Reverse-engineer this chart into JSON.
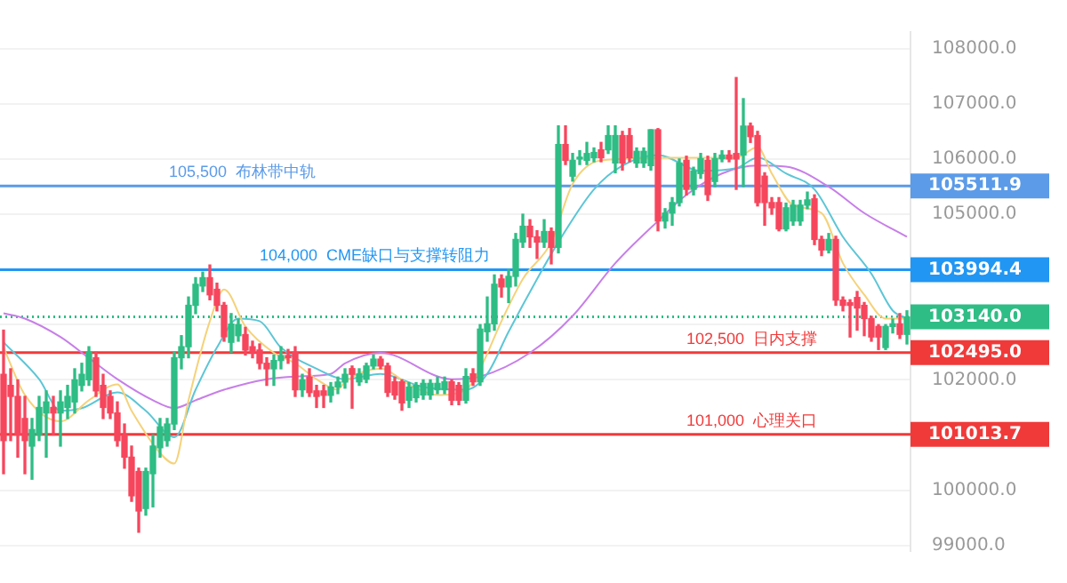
{
  "chart_data": {
    "type": "candlestick",
    "categories": [
      null,
      null,
      null,
      null,
      null,
      null,
      null,
      null,
      null,
      null,
      null,
      null,
      null,
      null,
      null,
      null,
      null,
      null,
      null,
      null,
      null,
      null,
      null,
      null,
      null,
      null,
      null,
      null,
      null,
      null,
      null,
      null,
      null,
      null,
      null,
      null,
      null,
      null,
      null,
      null,
      null,
      null,
      null,
      null,
      null,
      null,
      null,
      null,
      null,
      null,
      null,
      null,
      null,
      null,
      null,
      null,
      null,
      null,
      null,
      null,
      null,
      null,
      null,
      null,
      null,
      null,
      null,
      null,
      null,
      null,
      null,
      null,
      null,
      null,
      null,
      null,
      null,
      null,
      null,
      null,
      null,
      null,
      null,
      null,
      null,
      null,
      null,
      null,
      null,
      null,
      null,
      null,
      null,
      null,
      null,
      null,
      null,
      null,
      null,
      null,
      null,
      null,
      null,
      null,
      null,
      null,
      null,
      null,
      null,
      null,
      null,
      null,
      null,
      null,
      null,
      null,
      null,
      null,
      null,
      null,
      null,
      null,
      null,
      null,
      null,
      null,
      null,
      null
    ],
    "ohlc": [
      [
        102100,
        102900,
        100300,
        100900
      ],
      [
        101900,
        102200,
        100900,
        101700
      ],
      [
        101700,
        102000,
        100600,
        101000
      ],
      [
        101300,
        101700,
        100300,
        100900
      ],
      [
        100800,
        101300,
        100200,
        101100
      ],
      [
        101000,
        101700,
        100900,
        101500
      ],
      [
        101400,
        101800,
        100600,
        101600
      ],
      [
        101500,
        101700,
        101000,
        101400
      ],
      [
        101400,
        101800,
        100800,
        101600
      ],
      [
        101500,
        101900,
        101300,
        101700
      ],
      [
        101600,
        102200,
        101400,
        102000
      ],
      [
        101900,
        102300,
        101800,
        102100
      ],
      [
        102000,
        102600,
        101900,
        102500
      ],
      [
        102400,
        102500,
        101700,
        101800
      ],
      [
        101900,
        102100,
        101300,
        101500
      ],
      [
        101700,
        101800,
        101300,
        101400
      ],
      [
        101400,
        101600,
        100800,
        100900
      ],
      [
        101000,
        101200,
        100400,
        100600
      ],
      [
        100600,
        100800,
        99800,
        99900
      ],
      [
        100340,
        100400,
        99240,
        99625
      ],
      [
        99670,
        100400,
        99550,
        100340
      ],
      [
        100300,
        101000,
        99700,
        100800
      ],
      [
        100770,
        101300,
        100600,
        101150
      ],
      [
        100900,
        101300,
        100800,
        101200
      ],
      [
        101200,
        102500,
        101100,
        102400
      ],
      [
        102400,
        102800,
        102200,
        102600
      ],
      [
        102600,
        103500,
        102400,
        103350
      ],
      [
        103350,
        103850,
        103200,
        103730
      ],
      [
        103700,
        103950,
        103600,
        103850
      ],
      [
        103850,
        104080,
        103450,
        103540
      ],
      [
        103640,
        103750,
        103250,
        103350
      ],
      [
        103350,
        103400,
        102700,
        102780
      ],
      [
        102680,
        103200,
        102500,
        103010
      ],
      [
        102800,
        103100,
        102700,
        103000
      ],
      [
        102820,
        102950,
        102450,
        102540
      ],
      [
        102600,
        102700,
        102400,
        102500
      ],
      [
        102540,
        102650,
        102200,
        102300
      ],
      [
        102300,
        102400,
        101900,
        102200
      ],
      [
        102200,
        102450,
        101900,
        102350
      ],
      [
        102350,
        102600,
        102200,
        102440
      ],
      [
        102440,
        102550,
        102300,
        102400
      ],
      [
        102500,
        102600,
        101700,
        101820
      ],
      [
        101820,
        102100,
        101700,
        102000
      ],
      [
        102050,
        102200,
        101700,
        101770
      ],
      [
        101800,
        101900,
        101500,
        101700
      ],
      [
        101800,
        101900,
        101500,
        101720
      ],
      [
        101720,
        101950,
        101600,
        101870
      ],
      [
        101870,
        102050,
        101750,
        101960
      ],
      [
        101960,
        102200,
        101850,
        102100
      ],
      [
        102203,
        102250,
        101487,
        102100
      ],
      [
        101964,
        102200,
        101900,
        102108
      ],
      [
        102012,
        102300,
        101950,
        102251
      ],
      [
        102251,
        102450,
        102200,
        102375
      ],
      [
        102375,
        102420,
        102200,
        102251
      ],
      [
        102251,
        102300,
        101700,
        101773
      ],
      [
        101964,
        102050,
        101650,
        101726
      ],
      [
        101964,
        102000,
        101450,
        101583
      ],
      [
        101630,
        101950,
        101500,
        101869
      ],
      [
        101678,
        101950,
        101600,
        101900
      ],
      [
        101726,
        102000,
        101650,
        101936
      ],
      [
        101726,
        102000,
        101650,
        101936
      ],
      [
        101821,
        102050,
        101750,
        101936
      ],
      [
        101821,
        102050,
        101750,
        101964
      ],
      [
        101964,
        102000,
        101550,
        101630
      ],
      [
        101900,
        101950,
        101550,
        101630
      ],
      [
        101630,
        102200,
        101580,
        102060
      ],
      [
        102108,
        102200,
        101900,
        101964
      ],
      [
        101964,
        103000,
        101900,
        102919
      ],
      [
        102872,
        103500,
        102700,
        103015
      ],
      [
        103015,
        103900,
        102900,
        103731
      ],
      [
        103827,
        103900,
        103500,
        103683
      ],
      [
        103683,
        104000,
        103400,
        103874
      ],
      [
        103874,
        104650,
        103700,
        104543
      ],
      [
        104495,
        105000,
        104400,
        104782
      ],
      [
        104782,
        104900,
        104400,
        104590
      ],
      [
        104590,
        104700,
        104200,
        104495
      ],
      [
        104495,
        104900,
        104400,
        104686
      ],
      [
        104686,
        104750,
        104100,
        104400
      ],
      [
        104400,
        106600,
        104300,
        106262
      ],
      [
        106262,
        106600,
        105900,
        105975
      ],
      [
        105689,
        106100,
        105600,
        105975
      ],
      [
        106000,
        106150,
        105900,
        106023
      ],
      [
        105975,
        106300,
        105900,
        106099
      ],
      [
        106023,
        106200,
        105950,
        106118
      ],
      [
        106166,
        106300,
        105950,
        106023
      ],
      [
        106166,
        106600,
        106100,
        106424
      ],
      [
        105928,
        106600,
        105750,
        106424
      ],
      [
        106424,
        106500,
        105800,
        105928
      ],
      [
        106424,
        106550,
        105950,
        106023
      ],
      [
        105928,
        106200,
        105850,
        106138
      ],
      [
        105928,
        106200,
        105850,
        106138
      ],
      [
        105880,
        106529,
        105800,
        106529
      ],
      [
        106529,
        106550,
        104700,
        104877
      ],
      [
        104877,
        105100,
        104750,
        105020
      ],
      [
        105020,
        105300,
        104800,
        105211
      ],
      [
        105211,
        106000,
        105150,
        105928
      ],
      [
        105975,
        106050,
        105350,
        105450
      ],
      [
        105450,
        105850,
        105350,
        105784
      ],
      [
        105737,
        106100,
        105650,
        106004
      ],
      [
        105975,
        106050,
        105250,
        105355
      ],
      [
        105593,
        106100,
        105500,
        106004
      ],
      [
        106004,
        106150,
        105950,
        106071
      ],
      [
        106071,
        106150,
        105950,
        106000
      ],
      [
        106099,
        107475,
        105450,
        106000
      ],
      [
        106071,
        107093,
        105500,
        106596
      ],
      [
        106596,
        106650,
        106300,
        106405
      ],
      [
        106424,
        106500,
        105150,
        105211
      ],
      [
        105689,
        105750,
        104800,
        105211
      ],
      [
        105211,
        105300,
        105000,
        105116
      ],
      [
        105211,
        105300,
        104700,
        104734
      ],
      [
        104734,
        105200,
        104700,
        105116
      ],
      [
        104877,
        105250,
        104800,
        105164
      ],
      [
        104877,
        105250,
        104800,
        105164
      ],
      [
        105164,
        105400,
        105100,
        105259
      ],
      [
        105278,
        105350,
        104450,
        104543
      ],
      [
        104543,
        104600,
        104250,
        104352
      ],
      [
        104352,
        104650,
        104300,
        104543
      ],
      [
        104543,
        104600,
        103350,
        103444
      ],
      [
        103444,
        103500,
        103250,
        103349
      ],
      [
        103397,
        103450,
        102776,
        103349
      ],
      [
        103492,
        103600,
        102900,
        103301
      ],
      [
        103349,
        103400,
        102800,
        103110
      ],
      [
        103110,
        103150,
        102700,
        102776
      ],
      [
        102967,
        103000,
        102550,
        102776
      ],
      [
        102585,
        103000,
        102550,
        102967
      ],
      [
        102967,
        103100,
        102850,
        103015
      ],
      [
        103015,
        103200,
        102750,
        102824
      ],
      [
        102824,
        103250,
        102650,
        103140
      ]
    ],
    "series": [
      {
        "type": "line",
        "color": "#f5d27a",
        "values": [
          102585,
          null,
          null,
          101726,
          null,
          null,
          null,
          null,
          101248,
          null,
          null,
          null,
          101630,
          null,
          null,
          null,
          101917,
          null,
          101440,
          null,
          null,
          null,
          100675,
          null,
          100484,
          null,
          101630,
          null,
          null,
          103063,
          null,
          103636,
          null,
          null,
          102967,
          null,
          null,
          null,
          102490,
          null,
          null,
          102300,
          null,
          null,
          102012,
          null,
          null,
          101821,
          101964,
          null,
          null,
          null,
          null,
          102203,
          null,
          null,
          null,
          101917,
          null,
          null,
          null,
          101726,
          null,
          null,
          null,
          101821,
          null,
          102203,
          null,
          null,
          103063,
          null,
          null,
          103827,
          null,
          null,
          null,
          104495,
          null,
          null,
          105546,
          null,
          null,
          null,
          105975,
          null,
          null,
          null,
          null,
          null,
          null,
          null,
          null,
          null,
          106023,
          null,
          null,
          null,
          null,
          null,
          null,
          null,
          null,
          106023,
          null,
          null,
          106214,
          null,
          105737,
          null,
          null,
          105164,
          null,
          null,
          null,
          105020,
          null,
          null,
          104113,
          null,
          null,
          103540,
          null,
          null,
          103110,
          null,
          null,
          103110
        ]
      },
      {
        "type": "line",
        "color": "#5cc6d6",
        "values": [
          102680,
          null,
          null,
          null,
          null,
          102012,
          null,
          null,
          101440,
          null,
          null,
          101487,
          null,
          null,
          null,
          null,
          101773,
          null,
          null,
          null,
          101440,
          null,
          null,
          null,
          100960,
          null,
          null,
          101821,
          null,
          null,
          102585,
          null,
          null,
          103110,
          null,
          null,
          103063,
          null,
          null,
          102585,
          null,
          null,
          null,
          null,
          102203,
          null,
          null,
          null,
          102012,
          null,
          null,
          null,
          null,
          102108,
          null,
          null,
          null,
          null,
          null,
          101869,
          null,
          null,
          null,
          null,
          null,
          101821,
          null,
          null,
          102108,
          null,
          null,
          102872,
          null,
          null,
          null,
          103827,
          null,
          null,
          104495,
          null,
          null,
          null,
          null,
          105450,
          null,
          null,
          null,
          105880,
          null,
          null,
          null,
          null,
          106071,
          null,
          null,
          null,
          null,
          null,
          105784,
          null,
          null,
          null,
          null,
          105832,
          null,
          null,
          106023,
          null,
          null,
          null,
          105737,
          null,
          null,
          null,
          105450,
          null,
          null,
          null,
          104590,
          null,
          null,
          null,
          103922,
          null,
          null,
          103254,
          null,
          103110
        ]
      },
      {
        "type": "line",
        "color": "#c77fe8",
        "values": [
          103206,
          null,
          null,
          103110,
          null,
          null,
          null,
          null,
          102776,
          null,
          null,
          null,
          102394,
          null,
          null,
          null,
          102012,
          null,
          null,
          null,
          null,
          101630,
          null,
          null,
          101487,
          null,
          null,
          101630,
          null,
          null,
          null,
          101821,
          null,
          null,
          null,
          null,
          null,
          102012,
          null,
          null,
          null,
          102060,
          null,
          null,
          null,
          null,
          102108,
          null,
          102300,
          null,
          null,
          null,
          null,
          102490,
          null,
          null,
          null,
          null,
          null,
          null,
          null,
          null,
          null,
          102012,
          null,
          null,
          null,
          102060,
          null,
          null,
          null,
          null,
          null,
          null,
          102490,
          null,
          null,
          null,
          null,
          null,
          103158,
          null,
          null,
          null,
          null,
          null,
          104113,
          null,
          null,
          null,
          null,
          null,
          104877,
          null,
          null,
          null,
          105350,
          null,
          null,
          null,
          null,
          105737,
          null,
          null,
          null,
          null,
          105880,
          null,
          null,
          null,
          105860,
          null,
          null,
          null,
          null,
          null,
          105498,
          null,
          null,
          null,
          null,
          105020,
          null,
          null,
          null,
          null,
          null,
          104590
        ]
      }
    ],
    "ylim": [
      98900,
      108300
    ],
    "yticks": [
      {
        "value": 99000,
        "label": "99000.0"
      },
      {
        "value": 100000,
        "label": "100000.0"
      },
      {
        "value": 101000,
        "label": null
      },
      {
        "value": 102000,
        "label": "102000.0"
      },
      {
        "value": 103000,
        "label": null
      },
      {
        "value": 104000,
        "label": null
      },
      {
        "value": 105000,
        "label": "105000.0"
      },
      {
        "value": 106000,
        "label": "106000.0"
      },
      {
        "value": 107000,
        "label": "107000.0"
      },
      {
        "value": 108000,
        "label": "108000.0"
      }
    ],
    "ref_lines": [
      {
        "axis": "y",
        "value": 105511.9,
        "label": "105,500  布林带中轨",
        "color": "#5b9be8",
        "line_style": "solid"
      },
      {
        "axis": "y",
        "value": 103994.4,
        "label": "104,000  CME缺口与支撑转阻力",
        "color": "#2196f3",
        "line_style": "solid"
      },
      {
        "axis": "y",
        "value": 103140,
        "label": null,
        "color": "#2ebd85",
        "line_style": "dotted"
      },
      {
        "axis": "y",
        "value": 102495,
        "label": "102,500  日内支撑",
        "color": "#f03a3a",
        "line_style": "solid"
      },
      {
        "axis": "y",
        "value": 101013.7,
        "label": "101,000  心理关口",
        "color": "#f03a3a",
        "line_style": "solid"
      }
    ],
    "annotations": [
      "105511.9",
      "103994.4",
      "103140.0",
      "102495.0",
      "101013.7"
    ],
    "grid": "y",
    "legend": false,
    "tick_labels": "y"
  }
}
